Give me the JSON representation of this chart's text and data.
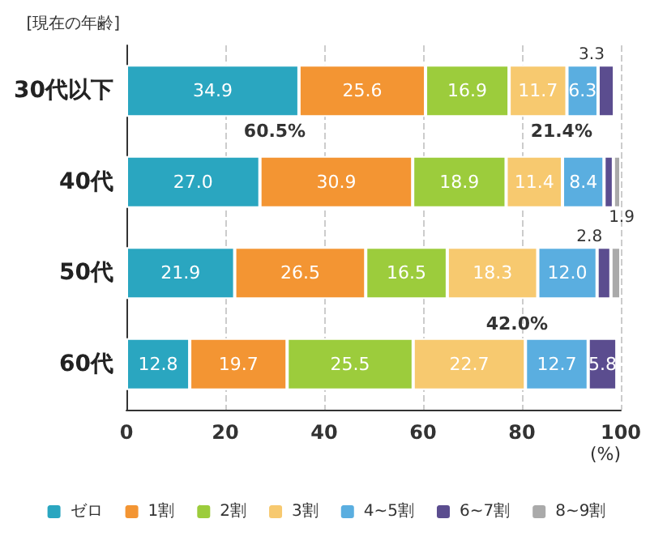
{
  "chart_data": {
    "type": "bar",
    "orientation": "horizontal",
    "stacked": true,
    "ylabel": "[現在の年齢]",
    "xlabel": "(%)",
    "categories": [
      "30代以下",
      "40代",
      "50代",
      "60代"
    ],
    "series": [
      {
        "name": "ゼロ",
        "color": "#2aa6c0",
        "values": [
          34.9,
          27.0,
          21.9,
          12.8
        ],
        "value_labels": [
          "34.9",
          "27.0",
          "21.9",
          "12.8"
        ]
      },
      {
        "name": "1割",
        "color": "#f39533",
        "values": [
          25.6,
          30.9,
          26.5,
          19.7
        ],
        "value_labels": [
          "25.6",
          "30.9",
          "26.5",
          "19.7"
        ]
      },
      {
        "name": "2割",
        "color": "#9ccc3c",
        "values": [
          16.9,
          18.9,
          16.5,
          25.5
        ],
        "value_labels": [
          "16.9",
          "18.9",
          "16.5",
          "25.5"
        ]
      },
      {
        "name": "3割",
        "color": "#f7c96f",
        "values": [
          11.7,
          11.4,
          18.3,
          22.7
        ],
        "value_labels": [
          "11.7",
          "11.4",
          "18.3",
          "22.7"
        ]
      },
      {
        "name": "4~5割",
        "color": "#5aaee0",
        "values": [
          6.3,
          8.4,
          12.0,
          12.7
        ],
        "value_labels": [
          "6.3",
          "8.4",
          "12.0",
          "12.7"
        ]
      },
      {
        "name": "6~7割",
        "color": "#5b4d8f",
        "values": [
          3.3,
          1.9,
          2.8,
          5.8
        ],
        "value_labels": [
          "3.3",
          "1.9",
          "2.8",
          "5.8"
        ]
      },
      {
        "name": "8~9割",
        "color": "#aaaaaa",
        "values": [
          null,
          1.5,
          2.0,
          null
        ]
      }
    ],
    "xlim": [
      0,
      100
    ],
    "xticks": [
      0,
      20,
      40,
      60,
      80,
      100
    ],
    "grid": "x",
    "legend": "bottom",
    "annotations": [
      "60.5%",
      "21.4%",
      "42.0%"
    ]
  }
}
